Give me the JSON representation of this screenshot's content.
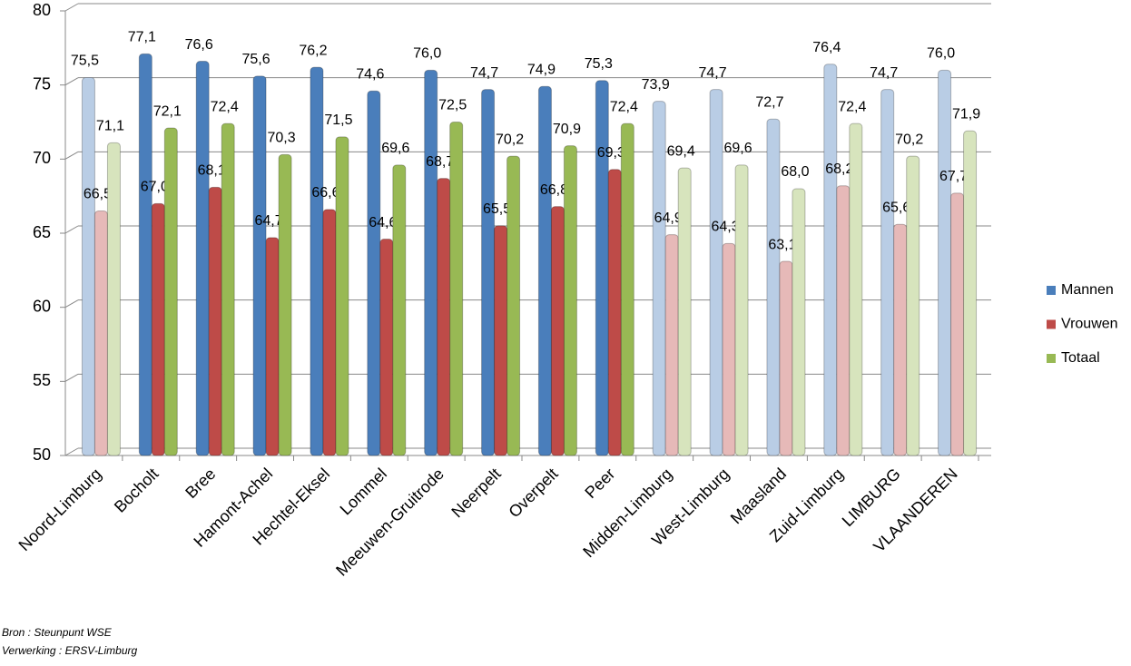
{
  "chart_data": {
    "type": "bar",
    "categories": [
      "Noord-Limburg",
      "Bocholt",
      "Bree",
      "Hamont-Achel",
      "Hechtel-Eksel",
      "Lommel",
      "Meeuwen-Gruitrode",
      "Neerpelt",
      "Overpelt",
      "Peer",
      "Midden-Limburg",
      "West-Limburg",
      "Maasland",
      "Zuid-Limburg",
      "LIMBURG",
      "VLAANDEREN"
    ],
    "series": [
      {
        "name": "Mannen",
        "color": "#4a7ebb",
        "colors": [
          "#b9cde5",
          "#4a7ebb",
          "#4a7ebb",
          "#4a7ebb",
          "#4a7ebb",
          "#4a7ebb",
          "#4a7ebb",
          "#4a7ebb",
          "#4a7ebb",
          "#4a7ebb",
          "#b9cde5",
          "#b9cde5",
          "#b9cde5",
          "#b9cde5",
          "#b9cde5",
          "#b9cde5"
        ],
        "values": [
          75.5,
          77.1,
          76.6,
          75.6,
          76.2,
          74.6,
          76.0,
          74.7,
          74.9,
          75.3,
          73.9,
          74.7,
          72.7,
          76.4,
          74.7,
          76.0
        ],
        "value_labels": [
          "75,5",
          "77,1",
          "76,6",
          "75,6",
          "76,2",
          "74,6",
          "76,0",
          "74,7",
          "74,9",
          "75,3",
          "73,9",
          "74,7",
          "72,7",
          "76,4",
          "74,7",
          "76,0"
        ]
      },
      {
        "name": "Vrouwen",
        "color": "#be4b48",
        "colors": [
          "#e6b9b8",
          "#be4b48",
          "#be4b48",
          "#be4b48",
          "#be4b48",
          "#be4b48",
          "#be4b48",
          "#be4b48",
          "#be4b48",
          "#be4b48",
          "#e6b9b8",
          "#e6b9b8",
          "#e6b9b8",
          "#e6b9b8",
          "#e6b9b8",
          "#e6b9b8"
        ],
        "values": [
          66.5,
          67.0,
          68.1,
          64.7,
          66.6,
          64.6,
          68.7,
          65.5,
          66.8,
          69.3,
          64.9,
          64.3,
          63.1,
          68.2,
          65.6,
          67.7
        ],
        "value_labels": [
          "66,5",
          "67,0",
          "68,1",
          "64,7",
          "66,6",
          "64,6",
          "68,7",
          "65,5",
          "66,8",
          "69,3",
          "64,9",
          "64,3",
          "63,1",
          "68,2",
          "65,6",
          "67,7"
        ]
      },
      {
        "name": "Totaal",
        "color": "#98b954",
        "colors": [
          "#d7e4bd",
          "#98b954",
          "#98b954",
          "#98b954",
          "#98b954",
          "#98b954",
          "#98b954",
          "#98b954",
          "#98b954",
          "#98b954",
          "#d7e4bd",
          "#d7e4bd",
          "#d7e4bd",
          "#d7e4bd",
          "#d7e4bd",
          "#d7e4bd"
        ],
        "values": [
          71.1,
          72.1,
          72.4,
          70.3,
          71.5,
          69.6,
          72.5,
          70.2,
          70.9,
          72.4,
          69.4,
          69.6,
          68.0,
          72.4,
          70.2,
          71.9
        ],
        "value_labels": [
          "71,1",
          "72,1",
          "72,4",
          "70,3",
          "71,5",
          "69,6",
          "72,5",
          "70,2",
          "70,9",
          "72,4",
          "69,4",
          "69,6",
          "68,0",
          "72,4",
          "70,2",
          "71,9"
        ]
      }
    ],
    "ylim": [
      50,
      80
    ],
    "yticks": [
      50,
      55,
      60,
      65,
      70,
      75,
      80
    ],
    "grid": true,
    "legend": "right",
    "notes": [
      "Bron : Steunpunt WSE",
      "Verwerking : ERSV-Limburg"
    ]
  }
}
